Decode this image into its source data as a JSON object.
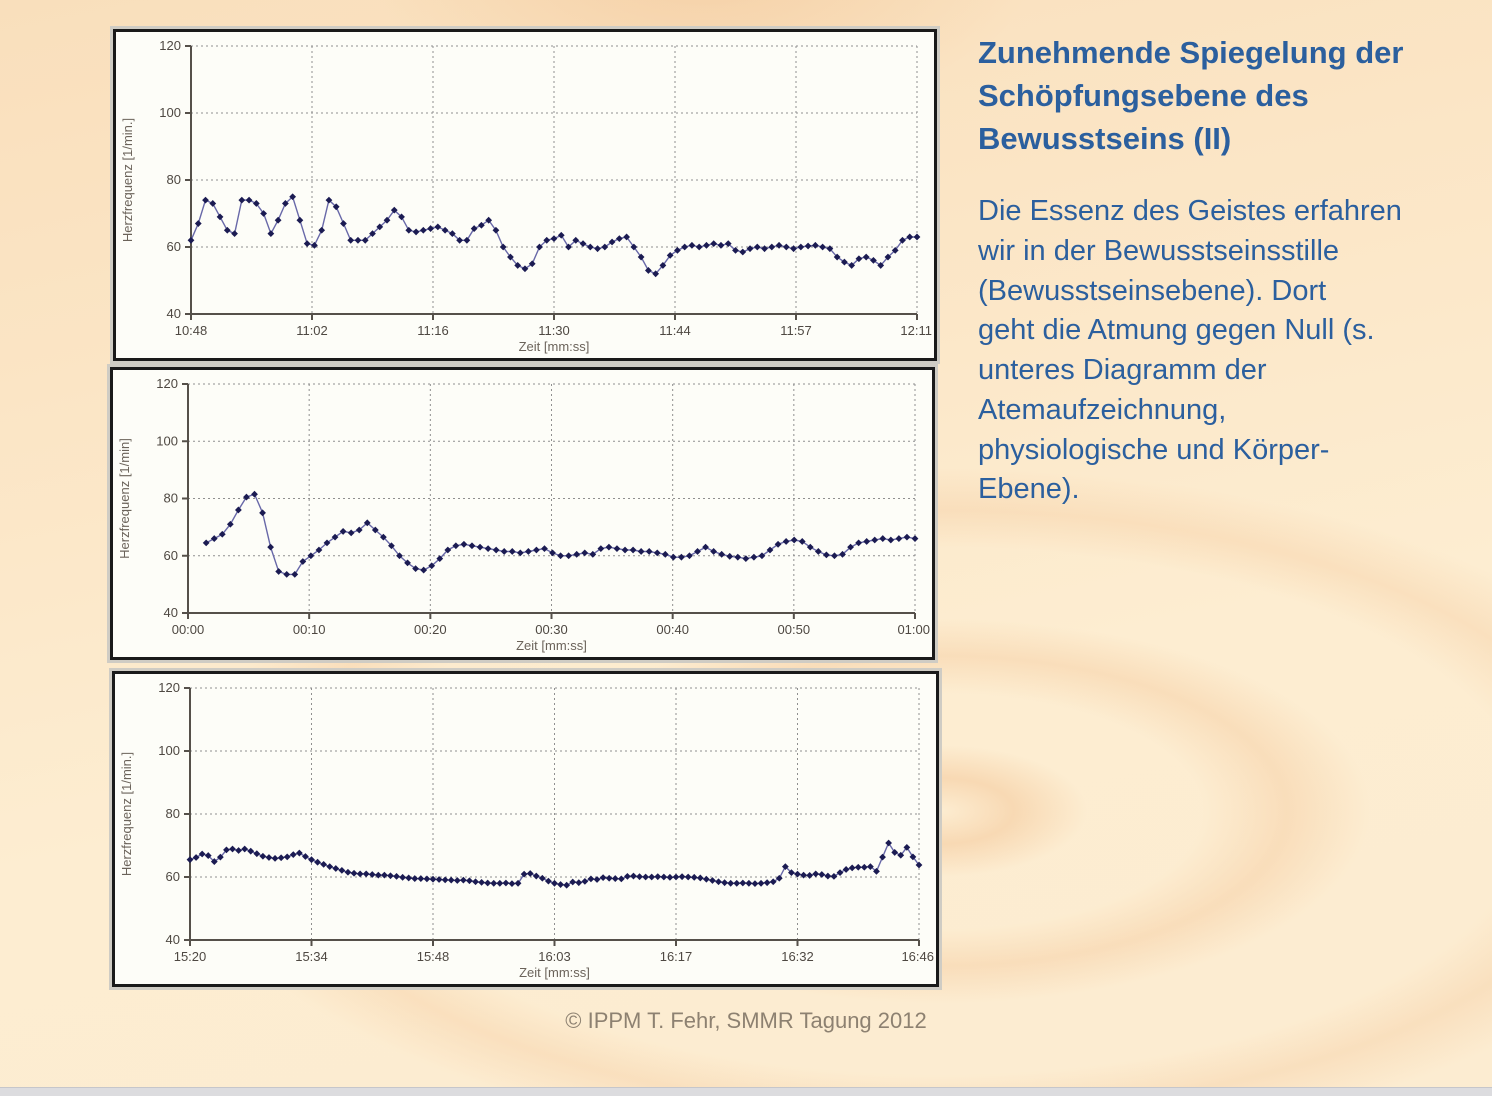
{
  "slide": {
    "title": "Zunehmende Spiegelung der\nSchöpfungsebene des\nBewusstseins (II)",
    "body": "Die Essenz des Geistes erfahren\nwir in der Bewusstseinsstille\n(Bewusstseinsebene). Dort\ngeht die Atmung gegen Null (s.\nunteres Diagramm der\nAtemaufzeichnung,\nphysiologische und Körper-\nEbene).",
    "footer": "© IPPM T. Fehr, SMMR Tagung 2012",
    "colors": {
      "text_blue": "#2b5f9e",
      "footer_gray": "#8d8171"
    }
  },
  "chart_style": {
    "line": "#6868a8",
    "marker": "#1b1b52",
    "grid": "#8f8f8f",
    "axis": "#55504a",
    "tick_text": "#4e4842",
    "axis_title": "#6b635a",
    "panel_bg": "#fdfdf8"
  },
  "chart_data": [
    {
      "type": "line",
      "title": "",
      "ylabel": "Herzfrequenz [1/min.]",
      "xlabel": "Zeit [mm:ss]",
      "ylim": [
        40,
        120
      ],
      "yticks": [
        40,
        60,
        80,
        100,
        120
      ],
      "xticklabels": [
        "10:48",
        "11:02",
        "11:16",
        "11:30",
        "11:44",
        "11:57",
        "12:11"
      ],
      "grid": true,
      "legend": "none",
      "x_start_frac": 0,
      "values": [
        62,
        67,
        74,
        73,
        69,
        65,
        64,
        74,
        74,
        73,
        70,
        64,
        68,
        73,
        75,
        68,
        61,
        60.5,
        65,
        74,
        72,
        67,
        62,
        62,
        62,
        64,
        66,
        68,
        71,
        69,
        65,
        64.5,
        65,
        65.5,
        66,
        65,
        64,
        62,
        62,
        65.5,
        66.5,
        68,
        65,
        60,
        57,
        54.5,
        53.5,
        55,
        60,
        62,
        62.5,
        63.5,
        60,
        62,
        61,
        60,
        59.5,
        60,
        61.5,
        62.5,
        63,
        60,
        57,
        53,
        52,
        54.5,
        57.5,
        59,
        60,
        60.5,
        60,
        60.5,
        61,
        60.5,
        61,
        59,
        58.5,
        59.5,
        60,
        59.5,
        60,
        60.5,
        60,
        59.5,
        60,
        60.3,
        60.5,
        60,
        59.5,
        57,
        55.5,
        54.5,
        56.5,
        57,
        56,
        54.5,
        57,
        59,
        62,
        63,
        63
      ]
    },
    {
      "type": "line",
      "title": "",
      "ylabel": "Herzfrequenz [1/min]",
      "xlabel": "Zeit [mm:ss]",
      "ylim": [
        40,
        120
      ],
      "yticks": [
        40,
        60,
        80,
        100,
        120
      ],
      "xticklabels": [
        "00:00",
        "00:10",
        "00:20",
        "00:30",
        "00:40",
        "00:50",
        "01:00"
      ],
      "grid": true,
      "legend": "none",
      "x_start_frac": 0.025,
      "values": [
        64.5,
        66,
        67.5,
        71,
        76,
        80.5,
        81.5,
        75,
        63,
        54.5,
        53.5,
        53.5,
        58,
        60,
        62,
        64.5,
        66.5,
        68.5,
        68,
        69,
        71.5,
        69,
        66.5,
        63.5,
        60,
        57.5,
        55.5,
        55,
        56.5,
        59,
        62,
        63.5,
        64,
        63.5,
        63,
        62.5,
        62,
        61.5,
        61.5,
        61,
        61.5,
        62,
        62.5,
        61,
        60,
        60,
        60.5,
        61,
        60.5,
        62.5,
        63,
        62.5,
        62,
        62,
        61.5,
        61.5,
        61,
        60.5,
        59.5,
        59.5,
        60,
        61.5,
        63,
        61.5,
        60.5,
        59.8,
        59.5,
        59,
        59.5,
        60,
        62,
        64,
        65,
        65.5,
        65,
        63,
        61.5,
        60.3,
        60,
        60.5,
        63,
        64.5,
        65,
        65.5,
        66,
        65.5,
        66,
        66.5,
        66
      ]
    },
    {
      "type": "line",
      "title": "",
      "ylabel": "Herzfrequenz [1/min.]",
      "xlabel": "Zeit [mm:ss]",
      "ylim": [
        40,
        120
      ],
      "yticks": [
        40,
        60,
        80,
        100,
        120
      ],
      "xticklabels": [
        "15:20",
        "15:34",
        "15:48",
        "16:03",
        "16:17",
        "16:32",
        "16:46"
      ],
      "grid": true,
      "legend": "none",
      "x_start_frac": 0,
      "values": [
        65.5,
        66.2,
        67.3,
        66.8,
        64.9,
        66.3,
        68.6,
        68.9,
        68.4,
        68.9,
        68.2,
        67.4,
        66.6,
        66.2,
        65.9,
        66.1,
        66.4,
        67.1,
        67.6,
        66.5,
        65.5,
        64.7,
        64,
        63.3,
        62.7,
        62.1,
        61.5,
        61.2,
        61,
        61,
        60.8,
        60.6,
        60.6,
        60.4,
        60.2,
        59.9,
        59.7,
        59.5,
        59.5,
        59.4,
        59.3,
        59.2,
        59.1,
        59,
        58.9,
        59,
        58.8,
        58.5,
        58.3,
        58.1,
        58,
        58,
        58.1,
        57.9,
        58,
        60.9,
        61.1,
        60.3,
        59.6,
        58.7,
        58,
        57.6,
        57.4,
        58.4,
        58.2,
        58.6,
        59.4,
        59.2,
        59.8,
        59.6,
        59.5,
        59.4,
        60.2,
        60.3,
        60.1,
        60,
        60,
        60.1,
        60,
        59.9,
        60,
        60.1,
        60,
        59.9,
        59.7,
        59.3,
        58.9,
        58.5,
        58.2,
        58,
        58,
        58.1,
        58,
        57.9,
        58,
        58.2,
        58.5,
        59.6,
        63.3,
        61.4,
        60.9,
        60.6,
        60.5,
        61,
        60.8,
        60.3,
        60.2,
        61.4,
        62.4,
        62.9,
        63.1,
        63.1,
        63.3,
        61.8,
        66.3,
        70.8,
        67.8,
        66.9,
        69.4,
        66.4,
        63.8
      ]
    }
  ]
}
